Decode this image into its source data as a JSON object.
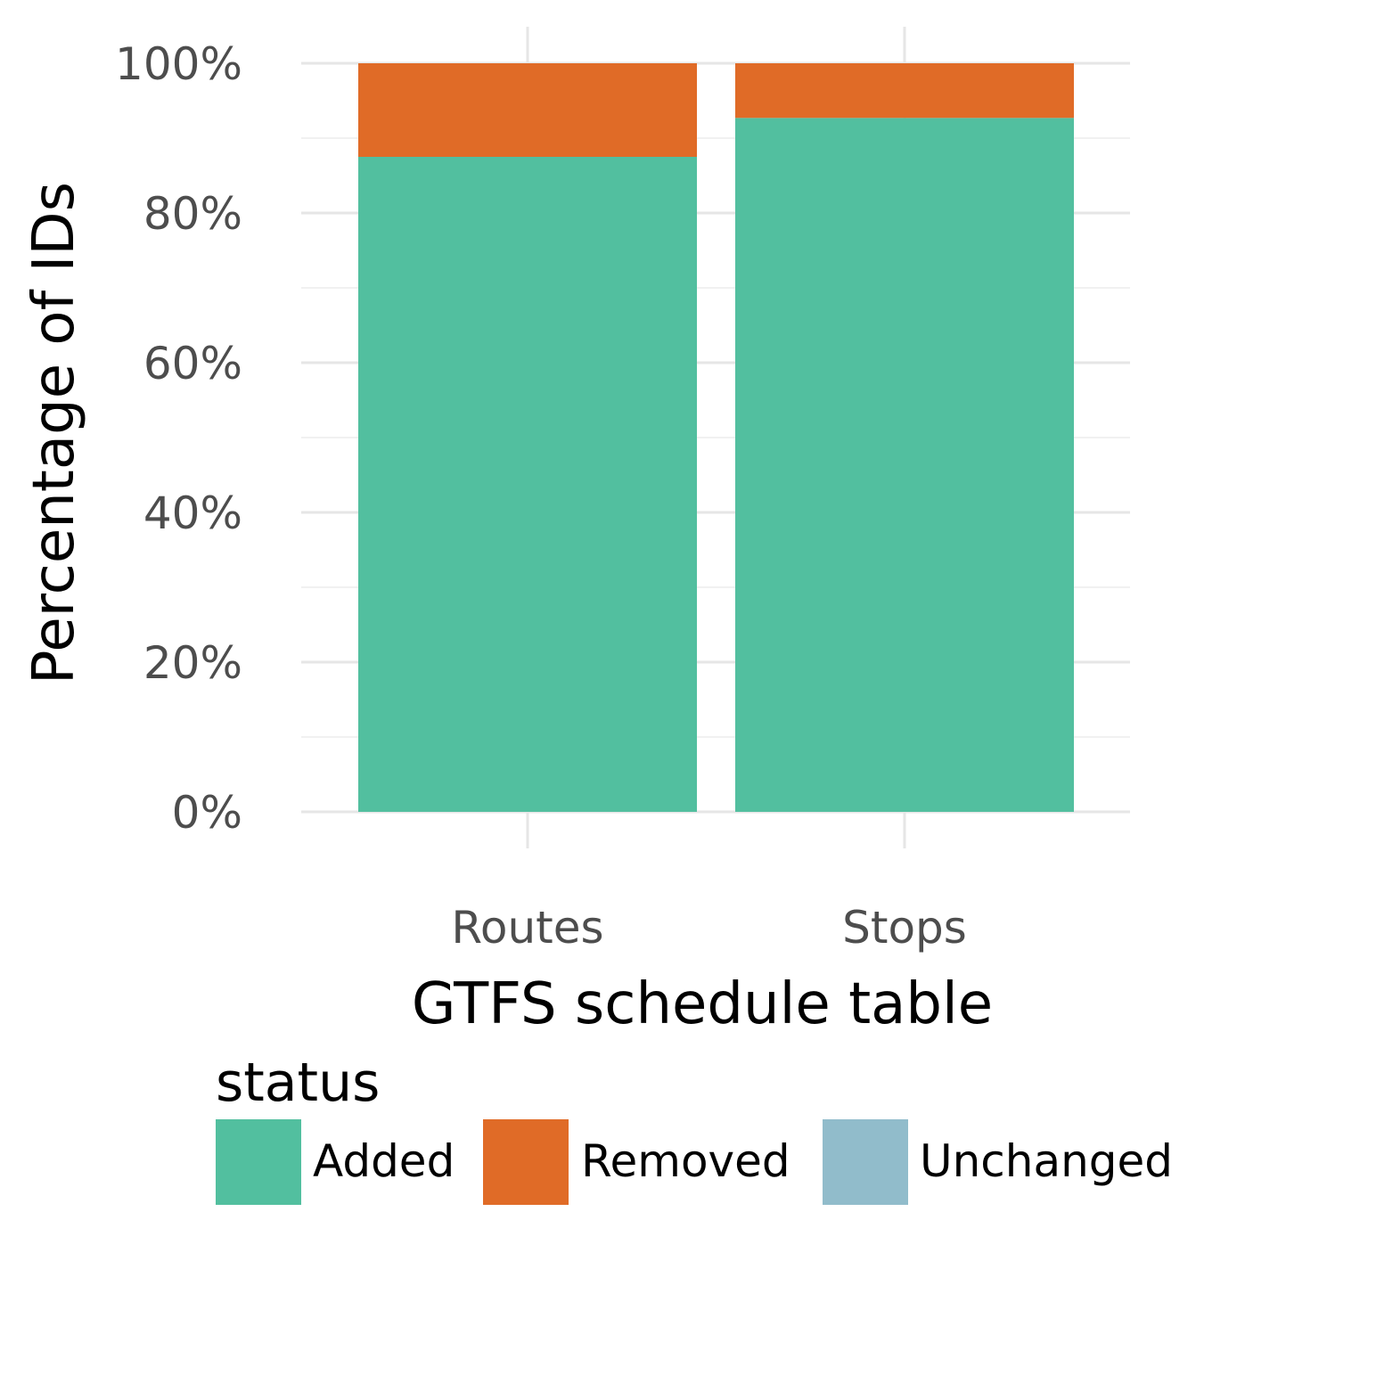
{
  "chart_data": {
    "type": "bar",
    "stacked": true,
    "position": "fill",
    "categories": [
      "Routes",
      "Stops"
    ],
    "series": [
      {
        "name": "Added",
        "values": [
          87.5,
          92.7
        ],
        "color": "#52BF9F"
      },
      {
        "name": "Removed",
        "values": [
          12.5,
          7.3
        ],
        "color": "#E06B27"
      },
      {
        "name": "Unchanged",
        "values": [
          0,
          0
        ],
        "color": "#91BCCB"
      }
    ],
    "xlabel": "GTFS schedule table",
    "ylabel": "Percentage of IDs",
    "ylim": [
      0,
      100
    ],
    "yticks": [
      0,
      20,
      40,
      60,
      80,
      100
    ],
    "ytick_labels": [
      "0%",
      "20%",
      "40%",
      "60%",
      "80%",
      "100%"
    ],
    "grid": true,
    "legend": {
      "title": "status",
      "position": "bottom",
      "entries": [
        "Added",
        "Removed",
        "Unchanged"
      ]
    }
  }
}
